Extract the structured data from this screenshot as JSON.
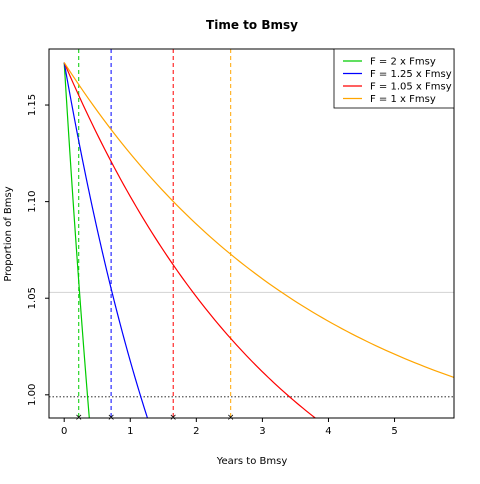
{
  "chart_data": {
    "type": "line",
    "title": "Time to Bmsy",
    "xlabel": "Years to Bmsy",
    "ylabel": "Proportion of Bmsy",
    "xlim": [
      -0.23,
      5.9
    ],
    "ylim": [
      0.988,
      1.179
    ],
    "x_ticks": [
      0,
      1,
      2,
      3,
      4,
      5
    ],
    "y_ticks": [
      1.0,
      1.05,
      1.1,
      1.15
    ],
    "y_tick_labels": [
      "1.00",
      "1.05",
      "1.10",
      "1.15"
    ],
    "legend_position": "top-right",
    "start_value": 1.172,
    "series": [
      {
        "name": "F = 2 x Fmsy",
        "color": "#00cc00",
        "end_x": 0.38,
        "end_y": 0.988,
        "curvature": 0.3,
        "time_to_bmsy": 0.22
      },
      {
        "name": "F = 1.25 x Fmsy",
        "color": "#0000ff",
        "end_x": 1.26,
        "end_y": 0.988,
        "curvature": 0.6,
        "time_to_bmsy": 0.71
      },
      {
        "name": "F = 1.05 x Fmsy",
        "color": "#ff0000",
        "end_x": 3.8,
        "end_y": 0.988,
        "curvature": 1.1,
        "time_to_bmsy": 1.65
      },
      {
        "name": "F = 1 x Fmsy",
        "color": "#ffa500",
        "end_x": 5.9,
        "end_y": 1.009,
        "curvature": 1.5,
        "time_to_bmsy": 2.52
      }
    ],
    "reference_lines": {
      "dotted_y": 0.999,
      "solid_y": 1.053,
      "solid_color": "#d3d3d3",
      "dotted_color": "#555555"
    }
  }
}
